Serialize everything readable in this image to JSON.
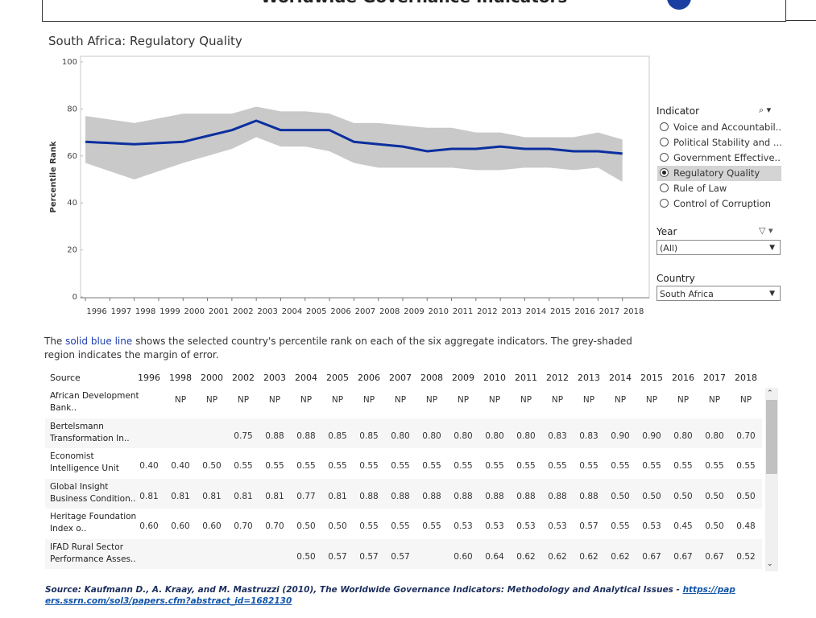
{
  "header": {
    "title": "Worldwide Governance Indicators"
  },
  "chart_data": {
    "type": "line",
    "title": "South Africa: Regulatory Quality",
    "y_label": "Percentile Rank",
    "x": [
      1996,
      1998,
      2000,
      2002,
      2003,
      2004,
      2005,
      2006,
      2007,
      2008,
      2009,
      2010,
      2011,
      2012,
      2013,
      2014,
      2015,
      2016,
      2017,
      2018
    ],
    "values": [
      66,
      65,
      66,
      71,
      75,
      71,
      71,
      71,
      66,
      65,
      64,
      62,
      63,
      63,
      64,
      63,
      63,
      62,
      62,
      61
    ],
    "upper": [
      77,
      74,
      78,
      78,
      81,
      79,
      79,
      78,
      74,
      74,
      73,
      72,
      72,
      70,
      70,
      68,
      68,
      68,
      70,
      67
    ],
    "lower": [
      57,
      50,
      57,
      63,
      68,
      64,
      64,
      62,
      57,
      55,
      55,
      55,
      55,
      54,
      54,
      55,
      55,
      54,
      55,
      49
    ],
    "color": "#0b2f9f",
    "band_color": "#c9c9c9",
    "xlim": [
      1995.8,
      2019.1
    ],
    "xticks": [
      1996,
      1997,
      1998,
      1999,
      2000,
      2001,
      2002,
      2003,
      2004,
      2005,
      2006,
      2007,
      2008,
      2009,
      2010,
      2011,
      2012,
      2013,
      2014,
      2015,
      2016,
      2017,
      2018
    ],
    "ylim": [
      0,
      100
    ],
    "yticks": [
      0,
      20,
      40,
      60,
      80,
      100
    ]
  },
  "filters": {
    "indicator": {
      "label": "Indicator",
      "options": [
        "Voice and Accountabil...",
        "Political Stability and ...",
        "Government Effective...",
        "Regulatory Quality",
        "Rule of Law",
        "Control of Corruption"
      ],
      "selected": 3
    },
    "year": {
      "label": "Year",
      "value": "(All)"
    },
    "country": {
      "label": "Country",
      "value": "South Africa"
    }
  },
  "note": {
    "parts": [
      "The ",
      "solid blue line",
      " shows the selected country's percentile rank on each of the six aggregate indicators.  The grey-shaded region indicates the margin of error."
    ]
  },
  "table": {
    "columns": [
      "Source",
      "1996",
      "1998",
      "2000",
      "2002",
      "2003",
      "2004",
      "2005",
      "2006",
      "2007",
      "2008",
      "2009",
      "2010",
      "2011",
      "2012",
      "2013",
      "2014",
      "2015",
      "2016",
      "2017",
      "2018"
    ],
    "rows": [
      {
        "source": "African Development Bank..",
        "cells": [
          null,
          "NP",
          "NP",
          "NP",
          "NP",
          "NP",
          "NP",
          "NP",
          "NP",
          "NP",
          "NP",
          "NP",
          "NP",
          "NP",
          "NP",
          "NP",
          "NP",
          "NP",
          "NP",
          "NP"
        ]
      },
      {
        "source": "Bertelsmann Transformation In..",
        "cells": [
          null,
          null,
          null,
          "0.75",
          "0.88",
          "0.88",
          "0.85",
          "0.85",
          "0.80",
          "0.80",
          "0.80",
          "0.80",
          "0.80",
          "0.83",
          "0.83",
          "0.90",
          "0.90",
          "0.80",
          "0.80",
          "0.70"
        ]
      },
      {
        "source": "Economist Intelligence Unit",
        "cells": [
          "0.40",
          "0.40",
          "0.50",
          "0.55",
          "0.55",
          "0.55",
          "0.55",
          "0.55",
          "0.55",
          "0.55",
          "0.55",
          "0.55",
          "0.55",
          "0.55",
          "0.55",
          "0.55",
          "0.55",
          "0.55",
          "0.55",
          "0.55"
        ]
      },
      {
        "source": "Global Insight Business Condition..",
        "cells": [
          "0.81",
          "0.81",
          "0.81",
          "0.81",
          "0.81",
          "0.77",
          "0.81",
          "0.88",
          "0.88",
          "0.88",
          "0.88",
          "0.88",
          "0.88",
          "0.88",
          "0.88",
          "0.50",
          "0.50",
          "0.50",
          "0.50",
          "0.50"
        ]
      },
      {
        "source": "Heritage Foundation Index o..",
        "cells": [
          "0.60",
          "0.60",
          "0.60",
          "0.70",
          "0.70",
          "0.50",
          "0.50",
          "0.55",
          "0.55",
          "0.55",
          "0.53",
          "0.53",
          "0.53",
          "0.53",
          "0.57",
          "0.55",
          "0.53",
          "0.45",
          "0.50",
          "0.48"
        ]
      },
      {
        "source": "IFAD Rural Sector Performance Asses..",
        "cells": [
          null,
          null,
          null,
          null,
          null,
          "0.50",
          "0.57",
          "0.57",
          "0.57",
          null,
          "0.60",
          "0.64",
          "0.62",
          "0.62",
          "0.62",
          "0.62",
          "0.67",
          "0.67",
          "0.67",
          "0.52"
        ]
      }
    ]
  },
  "source": {
    "text": "Source: Kaufmann D., A. Kraay, and M. Mastruzzi (2010), The Worldwide Governance Indicators: Methodology and Analytical Issues - ",
    "link": "https://papers.ssrn.com/sol3/papers.cfm?abstract_id=1682130"
  }
}
